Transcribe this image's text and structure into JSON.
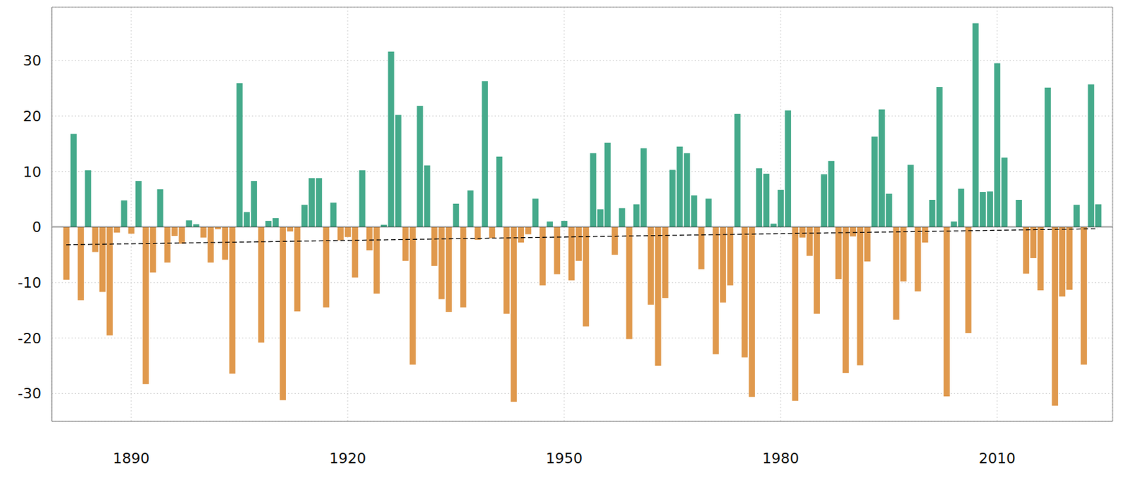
{
  "chart_data": {
    "type": "bar",
    "x": [
      1881,
      1882,
      1883,
      1884,
      1885,
      1886,
      1887,
      1888,
      1889,
      1890,
      1891,
      1892,
      1893,
      1894,
      1895,
      1896,
      1897,
      1898,
      1899,
      1900,
      1901,
      1902,
      1903,
      1904,
      1905,
      1906,
      1907,
      1908,
      1909,
      1910,
      1911,
      1912,
      1913,
      1914,
      1915,
      1916,
      1917,
      1918,
      1919,
      1920,
      1921,
      1922,
      1923,
      1924,
      1925,
      1926,
      1927,
      1928,
      1929,
      1930,
      1931,
      1932,
      1933,
      1934,
      1935,
      1936,
      1937,
      1938,
      1939,
      1940,
      1941,
      1942,
      1943,
      1944,
      1945,
      1946,
      1947,
      1948,
      1949,
      1950,
      1951,
      1952,
      1953,
      1954,
      1955,
      1956,
      1957,
      1958,
      1959,
      1960,
      1961,
      1962,
      1963,
      1964,
      1965,
      1966,
      1967,
      1968,
      1969,
      1970,
      1971,
      1972,
      1973,
      1974,
      1975,
      1976,
      1977,
      1978,
      1979,
      1980,
      1981,
      1982,
      1983,
      1984,
      1985,
      1986,
      1987,
      1988,
      1989,
      1990,
      1991,
      1992,
      1993,
      1994,
      1995,
      1996,
      1997,
      1998,
      1999,
      2000,
      2001,
      2002,
      2003,
      2004,
      2005,
      2006,
      2007,
      2008,
      2009,
      2010,
      2011,
      2012,
      2013,
      2014,
      2015,
      2016,
      2017,
      2018,
      2019,
      2020,
      2021,
      2022,
      2023,
      2024
    ],
    "values": [
      -9.5,
      16.8,
      -13.2,
      10.2,
      -4.5,
      -11.7,
      -19.5,
      -1.0,
      4.8,
      -1.2,
      8.3,
      -28.3,
      -8.2,
      6.8,
      -6.4,
      -1.6,
      -3.0,
      1.2,
      0.5,
      -1.9,
      -6.4,
      -0.4,
      -5.9,
      -26.4,
      25.9,
      2.7,
      8.3,
      -20.8,
      1.1,
      1.6,
      -31.2,
      -0.8,
      -15.2,
      4.0,
      8.8,
      8.8,
      -14.5,
      4.4,
      -2.4,
      -1.8,
      -9.1,
      10.2,
      -4.2,
      -12.0,
      0.4,
      31.6,
      20.2,
      -6.1,
      -24.8,
      21.8,
      11.1,
      -7.0,
      -13.0,
      -15.3,
      4.2,
      -14.5,
      6.6,
      -2.3,
      26.3,
      -2.0,
      12.7,
      -15.6,
      -31.5,
      -2.8,
      -1.3,
      5.1,
      -10.5,
      1.0,
      -8.5,
      1.1,
      -9.6,
      -6.1,
      -17.9,
      13.3,
      3.2,
      15.2,
      -5.0,
      3.4,
      -20.2,
      4.1,
      14.2,
      -14.0,
      -25.0,
      -12.8,
      10.3,
      14.5,
      13.3,
      5.7,
      -7.6,
      5.1,
      -22.9,
      -13.6,
      -10.5,
      20.4,
      -23.5,
      -30.6,
      10.6,
      9.6,
      0.6,
      6.7,
      21.0,
      -31.3,
      -1.9,
      -5.2,
      -15.6,
      9.5,
      11.9,
      -9.4,
      -26.3,
      -1.7,
      -24.9,
      -6.2,
      16.3,
      21.2,
      6.0,
      -16.7,
      -9.8,
      11.2,
      -11.6,
      -2.8,
      4.9,
      25.2,
      -30.5,
      1.0,
      6.9,
      -19.1,
      36.7,
      6.3,
      6.4,
      29.5,
      12.5,
      0,
      4.9,
      -8.4,
      -5.6,
      -11.4,
      25.1,
      -32.2,
      -12.5,
      -11.3,
      4.0,
      -24.8,
      25.7,
      4.1
    ],
    "colors": [
      "#e0994d",
      "#45aa8b",
      "#e0994d",
      "#45aa8b",
      "#e0994d",
      "#e0994d",
      "#e0994d",
      "#e0994d",
      "#45aa8b",
      "#e0994d",
      "#45aa8b",
      "#e0994d",
      "#e0994d",
      "#45aa8b",
      "#e0994d",
      "#e0994d",
      "#e0994d",
      "#45aa8b",
      "#45aa8b",
      "#e0994d",
      "#e0994d",
      "#e0994d",
      "#e0994d",
      "#e0994d",
      "#45aa8b",
      "#45aa8b",
      "#45aa8b",
      "#e0994d",
      "#45aa8b",
      "#45aa8b",
      "#e0994d",
      "#e0994d",
      "#e0994d",
      "#45aa8b",
      "#45aa8b",
      "#45aa8b",
      "#e0994d",
      "#45aa8b",
      "#e0994d",
      "#e0994d",
      "#e0994d",
      "#45aa8b",
      "#e0994d",
      "#e0994d",
      "#45aa8b",
      "#45aa8b",
      "#45aa8b",
      "#e0994d",
      "#e0994d",
      "#45aa8b",
      "#45aa8b",
      "#e0994d",
      "#e0994d",
      "#e0994d",
      "#45aa8b",
      "#e0994d",
      "#45aa8b",
      "#e0994d",
      "#45aa8b",
      "#e0994d",
      "#45aa8b",
      "#e0994d",
      "#e0994d",
      "#e0994d",
      "#e0994d",
      "#45aa8b",
      "#e0994d",
      "#45aa8b",
      "#e0994d",
      "#45aa8b",
      "#e0994d",
      "#e0994d",
      "#e0994d",
      "#45aa8b",
      "#45aa8b",
      "#45aa8b",
      "#e0994d",
      "#45aa8b",
      "#e0994d",
      "#45aa8b",
      "#45aa8b",
      "#e0994d",
      "#e0994d",
      "#e0994d",
      "#45aa8b",
      "#45aa8b",
      "#45aa8b",
      "#45aa8b",
      "#e0994d",
      "#45aa8b",
      "#e0994d",
      "#e0994d",
      "#e0994d",
      "#45aa8b",
      "#e0994d",
      "#e0994d",
      "#45aa8b",
      "#45aa8b",
      "#45aa8b",
      "#45aa8b",
      "#45aa8b",
      "#e0994d",
      "#e0994d",
      "#e0994d",
      "#e0994d",
      "#45aa8b",
      "#45aa8b",
      "#e0994d",
      "#e0994d",
      "#e0994d",
      "#e0994d",
      "#e0994d",
      "#45aa8b",
      "#45aa8b",
      "#45aa8b",
      "#e0994d",
      "#e0994d",
      "#45aa8b",
      "#e0994d",
      "#e0994d",
      "#45aa8b",
      "#45aa8b",
      "#e0994d",
      "#45aa8b",
      "#45aa8b",
      "#e0994d",
      "#45aa8b",
      "#45aa8b",
      "#45aa8b",
      "#45aa8b",
      "#45aa8b",
      "#45aa8b",
      "#45aa8b",
      "#e0994d",
      "#e0994d",
      "#e0994d",
      "#45aa8b",
      "#e0994d",
      "#e0994d",
      "#e0994d",
      "#45aa8b",
      "#e0994d",
      "#45aa8b",
      "#45aa8b"
    ],
    "trend": {
      "x": [
        1881,
        2024
      ],
      "values": [
        -3.2,
        -0.3
      ],
      "line_style": "dashed",
      "color": "#000000"
    },
    "xlim": [
      1879,
      2026
    ],
    "xticks": [
      1890,
      1920,
      1950,
      1980,
      2010
    ],
    "ylim": [
      -35,
      39.6
    ],
    "yticks": [
      -30,
      -20,
      -10,
      0,
      10,
      20,
      30
    ],
    "grid": true
  }
}
